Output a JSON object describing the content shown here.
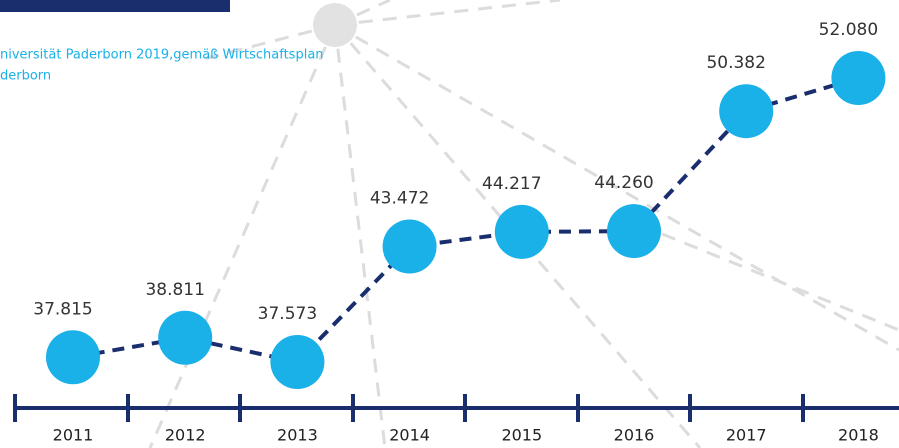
{
  "chart_data": {
    "type": "line",
    "subtitle": [
      "niversität Paderborn 2019,gemäß Wirtschaftsplan",
      "derborn"
    ],
    "categories": [
      "2011",
      "2012",
      "2013",
      "2014",
      "2015",
      "2016",
      "2017",
      "2018"
    ],
    "values": [
      37815,
      38811,
      37573,
      43472,
      44217,
      44260,
      50382,
      52080
    ],
    "value_labels": [
      "37.815",
      "38.811",
      "37.573",
      "43.472",
      "44.217",
      "44.260",
      "50.382",
      "52.080"
    ],
    "color": "#1ab0e8",
    "line_color": "#1a2e6e"
  }
}
